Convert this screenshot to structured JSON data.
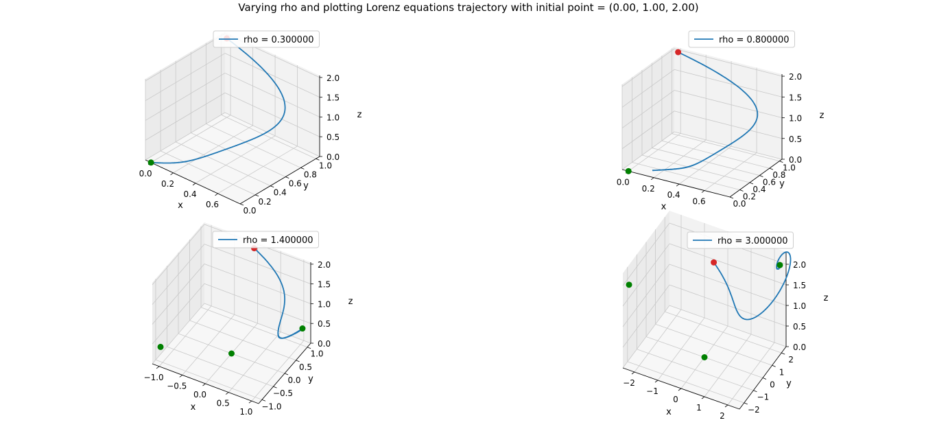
{
  "figure": {
    "title": "Varying rho and plotting Lorenz equations trajectory with initial point = (0.00, 1.00, 2.00)"
  },
  "colors": {
    "trajectory": "#1f77b4",
    "start_point": "#d62728",
    "fixed_point": "#008000",
    "pane_left": "#ebebeb",
    "pane_right": "#f2f2f2",
    "pane_floor": "#f7f7f7",
    "grid": "#c8c8c8"
  },
  "chart_data": [
    {
      "type": "line3d",
      "legend": "rho = 0.300000",
      "legend_loc": "upper center",
      "rho": 0.3,
      "xlabel": "x",
      "ylabel": "y",
      "zlabel": "z",
      "xticks": [
        "0.0",
        "0.2",
        "0.4",
        "0.6"
      ],
      "yticks": [
        "0.0",
        "0.2",
        "0.4",
        "0.6",
        "0.8",
        "1.0"
      ],
      "zticks": [
        "0.0",
        "0.5",
        "1.0",
        "1.5",
        "2.0"
      ],
      "xlim": [
        -0.05,
        0.8
      ],
      "ylim": [
        0,
        1.05
      ],
      "zlim": [
        0,
        2.05
      ],
      "initial_point": [
        0.0,
        1.0,
        2.0
      ],
      "fixed_points": [
        [
          0.0,
          0.0,
          0.0
        ]
      ]
    },
    {
      "type": "line3d",
      "legend": "rho = 0.800000",
      "legend_loc": "upper center",
      "rho": 0.8,
      "xlabel": "x",
      "ylabel": "y",
      "zlabel": "z",
      "xticks": [
        "0.0",
        "0.2",
        "0.4",
        "0.6"
      ],
      "yticks": [
        "0.0",
        "0.2",
        "0.4",
        "0.6",
        "0.8",
        "1.0"
      ],
      "zticks": [
        "0.0",
        "0.5",
        "1.0",
        "1.5",
        "2.0"
      ],
      "xlim": [
        -0.05,
        0.8
      ],
      "ylim": [
        0,
        1.05
      ],
      "zlim": [
        0,
        2.05
      ],
      "initial_point": [
        0.0,
        1.0,
        2.0
      ],
      "fixed_points": [
        [
          0.0,
          0.0,
          0.0
        ]
      ]
    },
    {
      "type": "line3d",
      "legend": "rho = 1.400000",
      "legend_loc": "upper center",
      "rho": 1.4,
      "xlabel": "x",
      "ylabel": "y",
      "zlabel": "z",
      "xticks": [
        "−1.0",
        "−0.5",
        "0.0",
        "0.5",
        "1.0"
      ],
      "yticks": [
        "−1.0",
        "−0.5",
        "0.0",
        "0.5",
        "1.0"
      ],
      "zticks": [
        "0.0",
        "0.5",
        "1.0",
        "1.5",
        "2.0"
      ],
      "xlim": [
        -1.15,
        1.15
      ],
      "ylim": [
        -1.15,
        1.15
      ],
      "zlim": [
        0,
        2.05
      ],
      "initial_point": [
        0.0,
        1.0,
        2.0
      ],
      "fixed_points": [
        [
          0.0,
          0.0,
          0.0
        ],
        [
          1.03,
          1.03,
          0.4
        ],
        [
          -1.03,
          -1.03,
          0.4
        ]
      ]
    },
    {
      "type": "line3d",
      "legend": "rho = 3.000000",
      "legend_loc": "upper center",
      "rho": 3.0,
      "xlabel": "x",
      "ylabel": "y",
      "zlabel": "z",
      "xticks": [
        "−2",
        "−1",
        "0",
        "1",
        "2"
      ],
      "yticks": [
        "−2",
        "−1",
        "0",
        "1",
        "2"
      ],
      "zticks": [
        "0.0",
        "0.5",
        "1.0",
        "1.5",
        "2.0"
      ],
      "xlim": [
        -2.5,
        2.5
      ],
      "ylim": [
        -2.5,
        2.5
      ],
      "zlim": [
        0,
        2.3
      ],
      "initial_point": [
        0.0,
        1.0,
        2.0
      ],
      "fixed_points": [
        [
          0.0,
          0.0,
          0.0
        ],
        [
          2.31,
          2.31,
          2.0
        ],
        [
          -2.31,
          -2.31,
          2.0
        ]
      ]
    }
  ]
}
